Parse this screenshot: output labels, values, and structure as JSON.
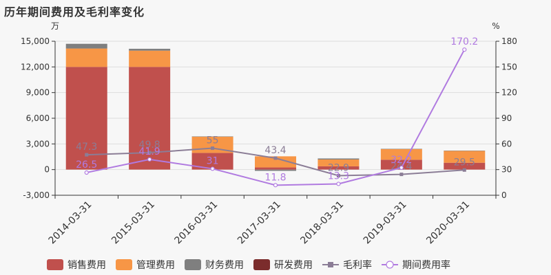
{
  "title": "历年期间费用及毛利率变化",
  "chart_data": {
    "type": "bar",
    "stacked": true,
    "categories": [
      "2014-03-31",
      "2015-03-31",
      "2016-03-31",
      "2017-03-31",
      "2018-03-31",
      "2019-03-31",
      "2020-03-31"
    ],
    "y_left_unit": "万",
    "y_right_unit": "%",
    "y_left_ticks": [
      "15,000",
      "12,000",
      "9,000",
      "6,000",
      "3,000",
      "0",
      "-3,000"
    ],
    "y_right_ticks": [
      "180",
      "150",
      "120",
      "90",
      "60",
      "30",
      "0"
    ],
    "ylim_left": [
      -3000,
      15000
    ],
    "ylim_right": [
      0,
      180
    ],
    "grid": true,
    "legend_position": "bottom",
    "series": [
      {
        "name": "销售费用",
        "kind": "bar",
        "axis": "left",
        "color": "#c0504d",
        "values": [
          12000,
          12000,
          1950,
          250,
          380,
          1150,
          800
        ]
      },
      {
        "name": "管理费用",
        "kind": "bar",
        "axis": "left",
        "color": "#f79646",
        "values": [
          2150,
          1900,
          1900,
          1300,
          800,
          1250,
          1380
        ]
      },
      {
        "name": "财务费用",
        "kind": "bar",
        "axis": "left",
        "color": "#7f7f7f",
        "values": [
          550,
          220,
          30,
          -150,
          120,
          30,
          40
        ]
      },
      {
        "name": "研发费用",
        "kind": "bar",
        "axis": "left",
        "color": "#7b2c2c",
        "values": [
          0,
          0,
          0,
          0,
          0,
          0,
          0
        ]
      },
      {
        "name": "毛利率",
        "kind": "line",
        "axis": "right",
        "color": "#8b7d96",
        "marker": "square",
        "values": [
          47.3,
          49.8,
          55,
          43.4,
          22.9,
          24.4,
          29.5
        ],
        "labels": [
          "47.3",
          "49.8",
          "55",
          "43.4",
          "22.9",
          "24.4",
          "29.5"
        ]
      },
      {
        "name": "期间费用率",
        "kind": "line",
        "axis": "right",
        "color": "#b07ae0",
        "marker": "circle",
        "values": [
          26.5,
          41.9,
          31,
          11.8,
          13.3,
          32.2,
          170.2
        ],
        "labels": [
          "26.5",
          "41.9",
          "31",
          "11.8",
          "13.3",
          "32.2",
          "170.2"
        ]
      }
    ]
  }
}
